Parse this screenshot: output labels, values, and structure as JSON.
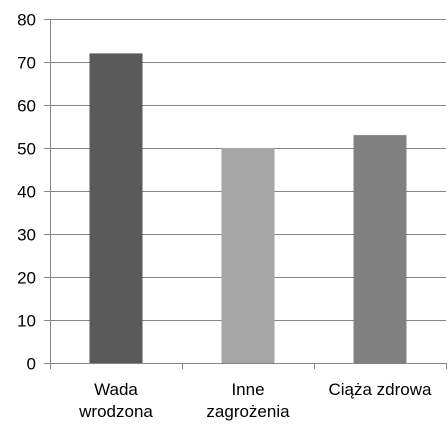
{
  "chart_data": {
    "type": "bar",
    "categories": [
      [
        "Wada",
        "wrodzona"
      ],
      [
        "Inne",
        "zagrożenia"
      ],
      [
        "Ciąża zdrowa"
      ]
    ],
    "values": [
      72,
      50,
      53
    ],
    "colors": [
      "#595959",
      "#a6a6a6",
      "#808080"
    ],
    "ylim": [
      0,
      80
    ],
    "yticks": [
      0,
      10,
      20,
      30,
      40,
      50,
      60,
      70,
      80
    ],
    "grid": true,
    "axis_color": "#868686",
    "grid_color": "#868686"
  }
}
